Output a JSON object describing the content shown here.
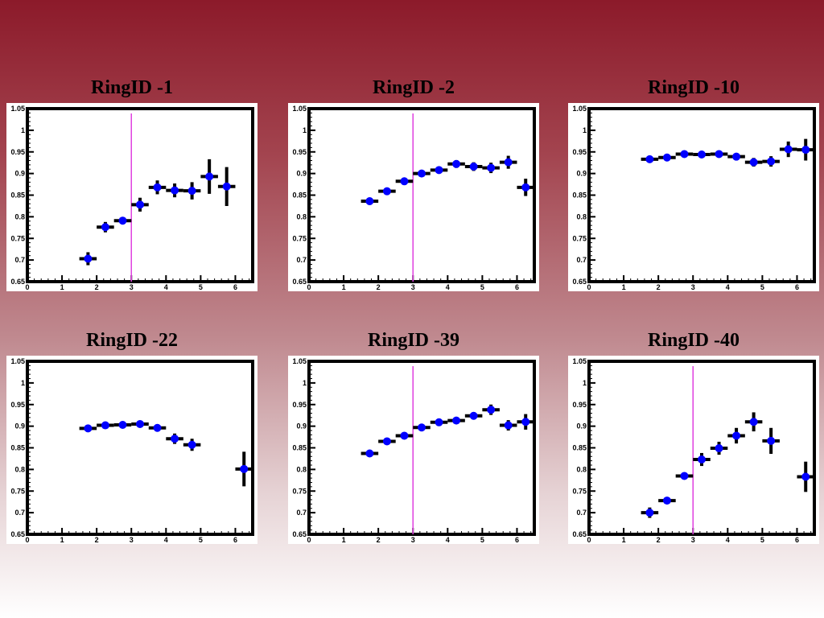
{
  "colors": {
    "marker": "#0000ff",
    "error_bar": "#000000",
    "cut_line": "#e040e0",
    "frame": "#000000"
  },
  "axes": {
    "xlim": [
      0,
      6.5
    ],
    "ylim": [
      0.65,
      1.05
    ],
    "xticks": [
      "0",
      "1",
      "2",
      "3",
      "4",
      "5",
      "6"
    ],
    "yticks": [
      "0.65",
      "0.7",
      "0.75",
      "0.8",
      "0.85",
      "0.9",
      "0.95",
      "1",
      "1.05"
    ]
  },
  "chart_data": [
    {
      "type": "scatter",
      "title": "RingID -1",
      "xlabel": "",
      "ylabel": "",
      "xlim": [
        0,
        6.5
      ],
      "ylim": [
        0.65,
        1.05
      ],
      "grid": false,
      "vline": 3.0,
      "points": [
        {
          "x": 1.75,
          "y": 0.703,
          "xerr": 0.25,
          "yerr": 0.015
        },
        {
          "x": 2.25,
          "y": 0.776,
          "xerr": 0.25,
          "yerr": 0.012
        },
        {
          "x": 2.75,
          "y": 0.791,
          "xerr": 0.25,
          "yerr": 0.008
        },
        {
          "x": 3.25,
          "y": 0.828,
          "xerr": 0.25,
          "yerr": 0.016
        },
        {
          "x": 3.75,
          "y": 0.868,
          "xerr": 0.25,
          "yerr": 0.016
        },
        {
          "x": 4.25,
          "y": 0.861,
          "xerr": 0.25,
          "yerr": 0.016
        },
        {
          "x": 4.75,
          "y": 0.86,
          "xerr": 0.25,
          "yerr": 0.02
        },
        {
          "x": 5.25,
          "y": 0.893,
          "xerr": 0.25,
          "yerr": 0.04
        },
        {
          "x": 5.75,
          "y": 0.87,
          "xerr": 0.25,
          "yerr": 0.045
        }
      ]
    },
    {
      "type": "scatter",
      "title": "RingID -2",
      "xlabel": "",
      "ylabel": "",
      "xlim": [
        0,
        6.5
      ],
      "ylim": [
        0.65,
        1.05
      ],
      "grid": false,
      "vline": 3.0,
      "points": [
        {
          "x": 1.75,
          "y": 0.836,
          "xerr": 0.25,
          "yerr": 0.005
        },
        {
          "x": 2.25,
          "y": 0.859,
          "xerr": 0.25,
          "yerr": 0.005
        },
        {
          "x": 2.75,
          "y": 0.882,
          "xerr": 0.25,
          "yerr": 0.005
        },
        {
          "x": 3.25,
          "y": 0.9,
          "xerr": 0.25,
          "yerr": 0.006
        },
        {
          "x": 3.75,
          "y": 0.908,
          "xerr": 0.25,
          "yerr": 0.007
        },
        {
          "x": 4.25,
          "y": 0.922,
          "xerr": 0.25,
          "yerr": 0.009
        },
        {
          "x": 4.75,
          "y": 0.916,
          "xerr": 0.25,
          "yerr": 0.01
        },
        {
          "x": 5.25,
          "y": 0.913,
          "xerr": 0.25,
          "yerr": 0.012
        },
        {
          "x": 5.75,
          "y": 0.926,
          "xerr": 0.25,
          "yerr": 0.015
        },
        {
          "x": 6.25,
          "y": 0.868,
          "xerr": 0.25,
          "yerr": 0.02
        }
      ]
    },
    {
      "type": "scatter",
      "title": "RingID -10",
      "xlabel": "",
      "ylabel": "",
      "xlim": [
        0,
        6.5
      ],
      "ylim": [
        0.65,
        1.05
      ],
      "grid": false,
      "vline": null,
      "points": [
        {
          "x": 1.75,
          "y": 0.933,
          "xerr": 0.25,
          "yerr": 0.005
        },
        {
          "x": 2.25,
          "y": 0.937,
          "xerr": 0.25,
          "yerr": 0.005
        },
        {
          "x": 2.75,
          "y": 0.945,
          "xerr": 0.25,
          "yerr": 0.006
        },
        {
          "x": 3.25,
          "y": 0.944,
          "xerr": 0.25,
          "yerr": 0.006
        },
        {
          "x": 3.75,
          "y": 0.945,
          "xerr": 0.25,
          "yerr": 0.006
        },
        {
          "x": 4.25,
          "y": 0.939,
          "xerr": 0.25,
          "yerr": 0.008
        },
        {
          "x": 4.75,
          "y": 0.926,
          "xerr": 0.25,
          "yerr": 0.01
        },
        {
          "x": 5.25,
          "y": 0.928,
          "xerr": 0.25,
          "yerr": 0.012
        },
        {
          "x": 5.75,
          "y": 0.956,
          "xerr": 0.25,
          "yerr": 0.018
        },
        {
          "x": 6.25,
          "y": 0.955,
          "xerr": 0.25,
          "yerr": 0.025
        }
      ]
    },
    {
      "type": "scatter",
      "title": "RingID -22",
      "xlabel": "",
      "ylabel": "",
      "xlim": [
        0,
        6.5
      ],
      "ylim": [
        0.65,
        1.05
      ],
      "grid": false,
      "vline": null,
      "points": [
        {
          "x": 1.75,
          "y": 0.895,
          "xerr": 0.25,
          "yerr": 0.005
        },
        {
          "x": 2.25,
          "y": 0.902,
          "xerr": 0.25,
          "yerr": 0.005
        },
        {
          "x": 2.75,
          "y": 0.903,
          "xerr": 0.25,
          "yerr": 0.005
        },
        {
          "x": 3.25,
          "y": 0.905,
          "xerr": 0.25,
          "yerr": 0.006
        },
        {
          "x": 3.75,
          "y": 0.896,
          "xerr": 0.25,
          "yerr": 0.008
        },
        {
          "x": 4.25,
          "y": 0.871,
          "xerr": 0.25,
          "yerr": 0.012
        },
        {
          "x": 4.75,
          "y": 0.857,
          "xerr": 0.25,
          "yerr": 0.014
        },
        {
          "x": 6.25,
          "y": 0.801,
          "xerr": 0.25,
          "yerr": 0.04
        }
      ]
    },
    {
      "type": "scatter",
      "title": "RingID -39",
      "xlabel": "",
      "ylabel": "",
      "xlim": [
        0,
        6.5
      ],
      "ylim": [
        0.65,
        1.05
      ],
      "grid": false,
      "vline": 3.0,
      "points": [
        {
          "x": 1.75,
          "y": 0.837,
          "xerr": 0.25,
          "yerr": 0.005
        },
        {
          "x": 2.25,
          "y": 0.865,
          "xerr": 0.25,
          "yerr": 0.005
        },
        {
          "x": 2.75,
          "y": 0.878,
          "xerr": 0.25,
          "yerr": 0.005
        },
        {
          "x": 3.25,
          "y": 0.897,
          "xerr": 0.25,
          "yerr": 0.006
        },
        {
          "x": 3.75,
          "y": 0.909,
          "xerr": 0.25,
          "yerr": 0.006
        },
        {
          "x": 4.25,
          "y": 0.913,
          "xerr": 0.25,
          "yerr": 0.008
        },
        {
          "x": 4.75,
          "y": 0.924,
          "xerr": 0.25,
          "yerr": 0.008
        },
        {
          "x": 5.25,
          "y": 0.938,
          "xerr": 0.25,
          "yerr": 0.012
        },
        {
          "x": 5.75,
          "y": 0.902,
          "xerr": 0.25,
          "yerr": 0.012
        },
        {
          "x": 6.25,
          "y": 0.91,
          "xerr": 0.25,
          "yerr": 0.018
        }
      ]
    },
    {
      "type": "scatter",
      "title": "RingID -40",
      "xlabel": "",
      "ylabel": "",
      "xlim": [
        0,
        6.5
      ],
      "ylim": [
        0.65,
        1.05
      ],
      "grid": false,
      "vline": 3.0,
      "points": [
        {
          "x": 1.75,
          "y": 0.7,
          "xerr": 0.25,
          "yerr": 0.012
        },
        {
          "x": 2.25,
          "y": 0.728,
          "xerr": 0.25,
          "yerr": 0.008
        },
        {
          "x": 2.75,
          "y": 0.785,
          "xerr": 0.25,
          "yerr": 0.008
        },
        {
          "x": 3.25,
          "y": 0.823,
          "xerr": 0.25,
          "yerr": 0.015
        },
        {
          "x": 3.75,
          "y": 0.849,
          "xerr": 0.25,
          "yerr": 0.015
        },
        {
          "x": 4.25,
          "y": 0.878,
          "xerr": 0.25,
          "yerr": 0.018
        },
        {
          "x": 4.75,
          "y": 0.91,
          "xerr": 0.25,
          "yerr": 0.022
        },
        {
          "x": 5.25,
          "y": 0.866,
          "xerr": 0.25,
          "yerr": 0.03
        },
        {
          "x": 6.25,
          "y": 0.783,
          "xerr": 0.25,
          "yerr": 0.035
        }
      ]
    }
  ]
}
